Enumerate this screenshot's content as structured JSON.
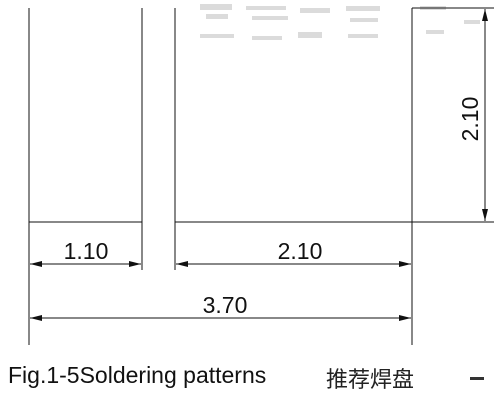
{
  "figure": {
    "caption": "Fig.1-5Soldering patterns",
    "caption_cjk": "推荐焊盘"
  },
  "dimensions": {
    "left_pad_width": "1.10",
    "right_pad_width": "2.10",
    "pad_height": "2.10",
    "overall_width": "3.70"
  },
  "colors": {
    "line": "#111111"
  }
}
